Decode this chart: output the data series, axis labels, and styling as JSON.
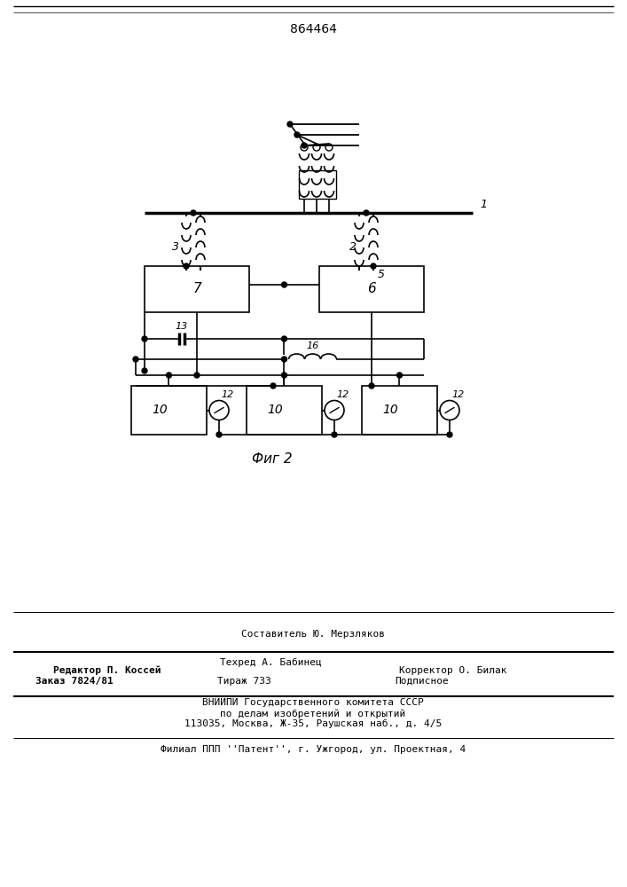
{
  "patent_number": "864464",
  "fig_label": "Фиг 2",
  "background_color": "#ffffff",
  "line_color": "#000000",
  "footer": {
    "sostavitel": "Составитель Ю. Мерзляков",
    "redaktor": "Редактор П. Коссей",
    "tehred": "Техред А. Бабинец",
    "korrektor": "Корректор О. Билак",
    "zakaz": "Заказ 7824/81",
    "tirazh": "Тираж 733",
    "podpisnoe": "Подписное",
    "vnipi1": "ВНИИПИ Государственного комитета СССР",
    "vnipi2": "по делам изобретений и открытий",
    "vnipi3": "113035, Москва, Ж-35, Раушская наб., д. 4/5",
    "filial": "Филиал ППП ''Патент'', г. Ужгород, ул. Проектная, 4"
  }
}
